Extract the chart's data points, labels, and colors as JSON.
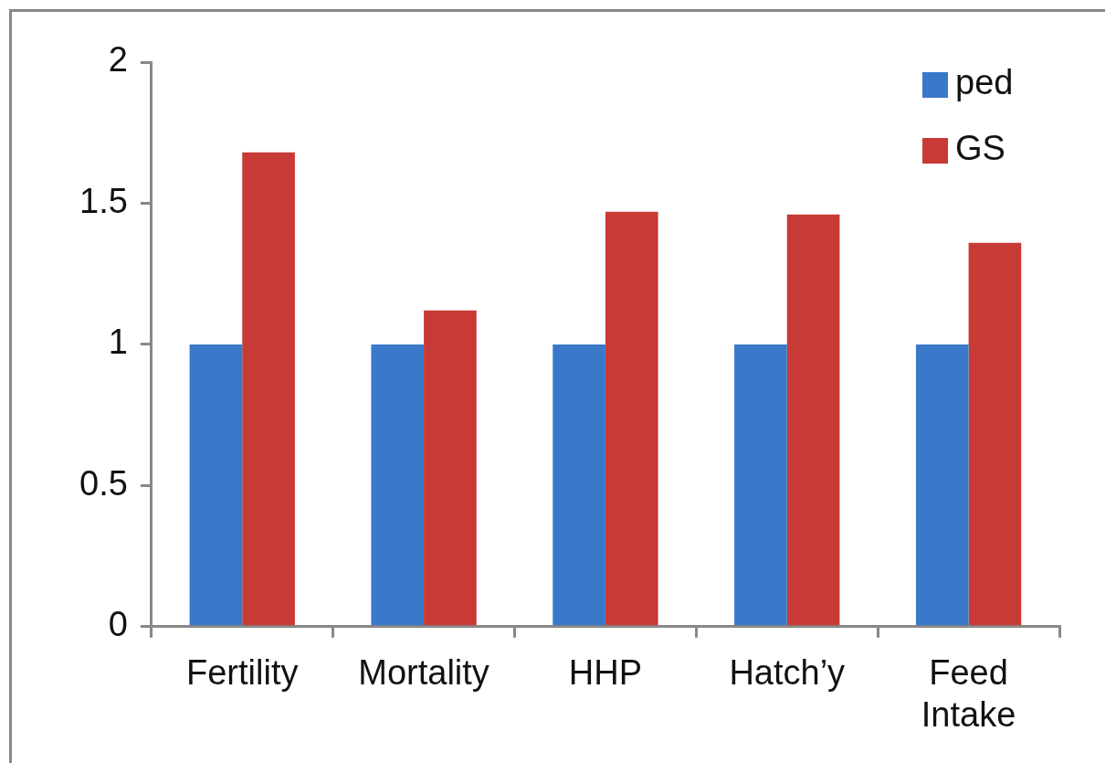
{
  "chart_data": {
    "type": "bar",
    "categories": [
      "Fertility",
      "Mortality",
      "HHP",
      "Hatch’y",
      "Feed Intake"
    ],
    "series": [
      {
        "name": "ped",
        "color": "#3a78c9",
        "values": [
          1,
          1,
          1,
          1,
          1
        ]
      },
      {
        "name": "GS",
        "color": "#c83a36",
        "values": [
          1.68,
          1.12,
          1.47,
          1.46,
          1.36
        ]
      }
    ],
    "ylim": [
      0,
      2
    ],
    "yticks": [
      0,
      0.5,
      1,
      1.5,
      2
    ],
    "grid": false,
    "legend": "top right"
  }
}
